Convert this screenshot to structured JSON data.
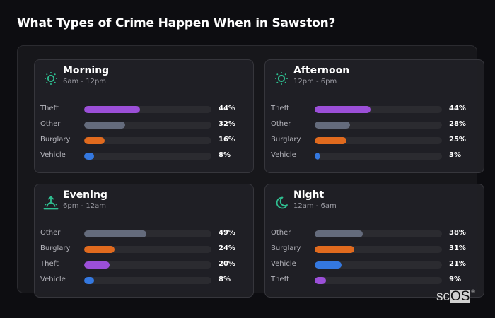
{
  "title": "What Types of Crime Happen When in Sawston?",
  "colors": {
    "Theft": "#9b4fd8",
    "Other": "#646b7c",
    "Burglary": "#e06a1e",
    "Vehicle": "#3478e0",
    "accent": "#2fbf91",
    "track": "#2b2b30"
  },
  "cards": [
    {
      "title": "Morning",
      "subtitle": "6am - 12pm",
      "icon": "sun-icon",
      "rows": [
        {
          "label": "Theft",
          "value": "44%",
          "pct": 44
        },
        {
          "label": "Other",
          "value": "32%",
          "pct": 32
        },
        {
          "label": "Burglary",
          "value": "16%",
          "pct": 16
        },
        {
          "label": "Vehicle",
          "value": "8%",
          "pct": 8
        }
      ]
    },
    {
      "title": "Afternoon",
      "subtitle": "12pm - 6pm",
      "icon": "sun-icon",
      "rows": [
        {
          "label": "Theft",
          "value": "44%",
          "pct": 44
        },
        {
          "label": "Other",
          "value": "28%",
          "pct": 28
        },
        {
          "label": "Burglary",
          "value": "25%",
          "pct": 25
        },
        {
          "label": "Vehicle",
          "value": "3%",
          "pct": 3
        }
      ]
    },
    {
      "title": "Evening",
      "subtitle": "6pm - 12am",
      "icon": "sunset-icon",
      "rows": [
        {
          "label": "Other",
          "value": "49%",
          "pct": 49
        },
        {
          "label": "Burglary",
          "value": "24%",
          "pct": 24
        },
        {
          "label": "Theft",
          "value": "20%",
          "pct": 20
        },
        {
          "label": "Vehicle",
          "value": "8%",
          "pct": 8
        }
      ]
    },
    {
      "title": "Night",
      "subtitle": "12am - 6am",
      "icon": "moon-icon",
      "rows": [
        {
          "label": "Other",
          "value": "38%",
          "pct": 38
        },
        {
          "label": "Burglary",
          "value": "31%",
          "pct": 31
        },
        {
          "label": "Vehicle",
          "value": "21%",
          "pct": 21
        },
        {
          "label": "Theft",
          "value": "9%",
          "pct": 9
        }
      ]
    }
  ],
  "logo": {
    "sc": "sc",
    "os": "OS",
    "reg": "®"
  },
  "chart_data": [
    {
      "type": "bar",
      "orientation": "horizontal",
      "title": "Morning",
      "subtitle": "6am - 12pm",
      "categories": [
        "Theft",
        "Other",
        "Burglary",
        "Vehicle"
      ],
      "values": [
        44,
        32,
        16,
        8
      ],
      "unit": "%"
    },
    {
      "type": "bar",
      "orientation": "horizontal",
      "title": "Afternoon",
      "subtitle": "12pm - 6pm",
      "categories": [
        "Theft",
        "Other",
        "Burglary",
        "Vehicle"
      ],
      "values": [
        44,
        28,
        25,
        3
      ],
      "unit": "%"
    },
    {
      "type": "bar",
      "orientation": "horizontal",
      "title": "Evening",
      "subtitle": "6pm - 12am",
      "categories": [
        "Other",
        "Burglary",
        "Theft",
        "Vehicle"
      ],
      "values": [
        49,
        24,
        20,
        8
      ],
      "unit": "%"
    },
    {
      "type": "bar",
      "orientation": "horizontal",
      "title": "Night",
      "subtitle": "12am - 6am",
      "categories": [
        "Other",
        "Burglary",
        "Vehicle",
        "Theft"
      ],
      "values": [
        38,
        31,
        21,
        9
      ],
      "unit": "%"
    }
  ]
}
